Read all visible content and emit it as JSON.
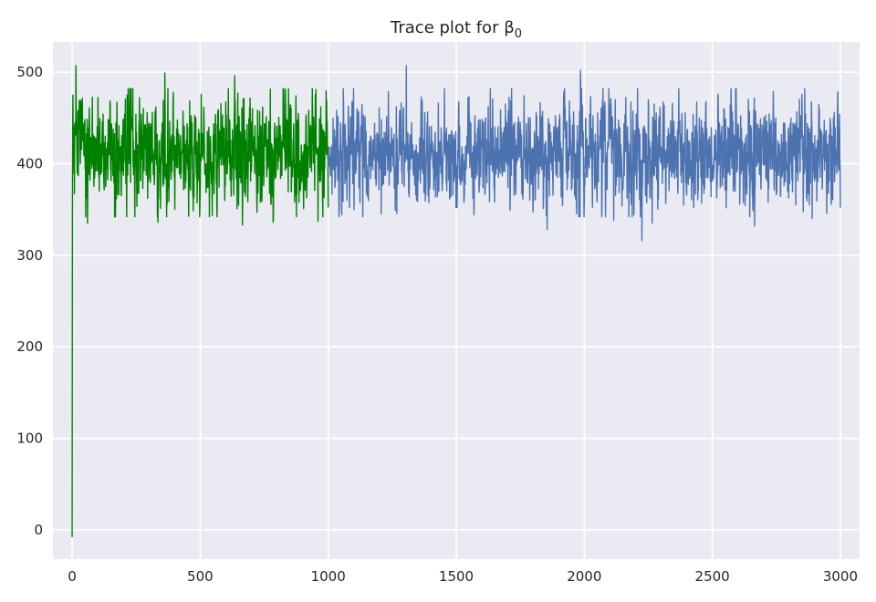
{
  "chart_data": {
    "type": "line",
    "title": "Trace plot for β",
    "title_subscript": "0",
    "xlabel": "",
    "ylabel": "",
    "xlim": [
      -75,
      3075
    ],
    "ylim": [
      -32,
      533
    ],
    "xticks": [
      0,
      500,
      1000,
      1500,
      2000,
      2500,
      3000
    ],
    "yticks": [
      0,
      100,
      200,
      300,
      400,
      500
    ],
    "grid": true,
    "background_color": "#EAEAF2",
    "grid_color": "#FFFFFF",
    "series": [
      {
        "color": "#008000",
        "x_range": [
          0,
          1000
        ],
        "start_value": -8,
        "center": 412,
        "spread": 28,
        "outliers": [
          {
            "x": 15,
            "y": 507
          },
          {
            "x": 60,
            "y": 335
          },
          {
            "x": 245,
            "y": 342
          },
          {
            "x": 335,
            "y": 336
          },
          {
            "x": 362,
            "y": 499
          },
          {
            "x": 565,
            "y": 356
          },
          {
            "x": 635,
            "y": 496
          },
          {
            "x": 665,
            "y": 333
          },
          {
            "x": 785,
            "y": 336
          },
          {
            "x": 960,
            "y": 337
          }
        ]
      },
      {
        "color": "#4C72B0",
        "x_range": [
          1000,
          3000
        ],
        "center": 412,
        "spread": 28,
        "outliers": [
          {
            "x": 1135,
            "y": 342
          },
          {
            "x": 1305,
            "y": 507
          },
          {
            "x": 1855,
            "y": 328
          },
          {
            "x": 1985,
            "y": 502
          },
          {
            "x": 2115,
            "y": 338
          },
          {
            "x": 2225,
            "y": 316
          },
          {
            "x": 2265,
            "y": 335
          },
          {
            "x": 2665,
            "y": 332
          },
          {
            "x": 2890,
            "y": 340
          },
          {
            "x": 3000,
            "y": 352
          }
        ]
      }
    ]
  }
}
